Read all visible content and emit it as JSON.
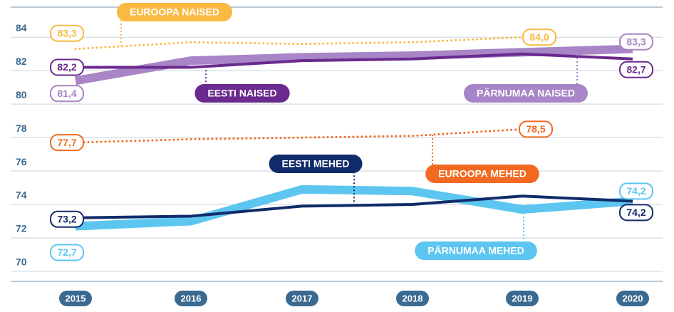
{
  "chart_data": {
    "type": "line",
    "categories": [
      "2015",
      "2016",
      "2017",
      "2018",
      "2019",
      "2020"
    ],
    "ylim": [
      69.4,
      85.8
    ],
    "yticks": [
      70,
      72,
      74,
      76,
      78,
      80,
      82,
      84
    ],
    "grid": true,
    "series": [
      {
        "name": "EUROOPA NAISED",
        "color": "#f9b942",
        "style": "dotted",
        "values": [
          83.3,
          83.7,
          83.6,
          83.7,
          84.0,
          null
        ],
        "value_labels": [
          "83,3",
          null,
          null,
          null,
          "84,0",
          null
        ]
      },
      {
        "name": "PÄRNUMAA NAISED",
        "color": "#a785c6",
        "style": "thick",
        "values": [
          81.4,
          82.6,
          82.8,
          82.9,
          83.1,
          83.3
        ],
        "value_labels": [
          "81,4",
          null,
          null,
          null,
          null,
          "83,3"
        ]
      },
      {
        "name": "EESTI NAISED",
        "color": "#6a2a8e",
        "style": "solid",
        "values": [
          82.2,
          82.2,
          82.6,
          82.7,
          83.0,
          82.7
        ],
        "value_labels": [
          "82,2",
          null,
          null,
          null,
          null,
          "82,7"
        ]
      },
      {
        "name": "EUROOPA MEHED",
        "color": "#f26a21",
        "style": "dotted",
        "values": [
          77.7,
          77.9,
          78.0,
          78.1,
          78.5,
          null
        ],
        "value_labels": [
          "77,7",
          null,
          null,
          null,
          "78,5",
          null
        ]
      },
      {
        "name": "PÄRNUMAA MEHED",
        "color": "#5dc6f0",
        "style": "thick",
        "values": [
          72.7,
          73.0,
          74.9,
          74.8,
          73.7,
          74.2
        ],
        "value_labels": [
          "72,7",
          null,
          null,
          null,
          null,
          "74,2"
        ]
      },
      {
        "name": "EESTI MEHED",
        "color": "#112b6a",
        "style": "solid",
        "values": [
          73.2,
          73.3,
          73.9,
          74.0,
          74.5,
          74.2
        ],
        "value_labels": [
          "73,2",
          null,
          null,
          null,
          null,
          "74,2"
        ]
      }
    ]
  }
}
